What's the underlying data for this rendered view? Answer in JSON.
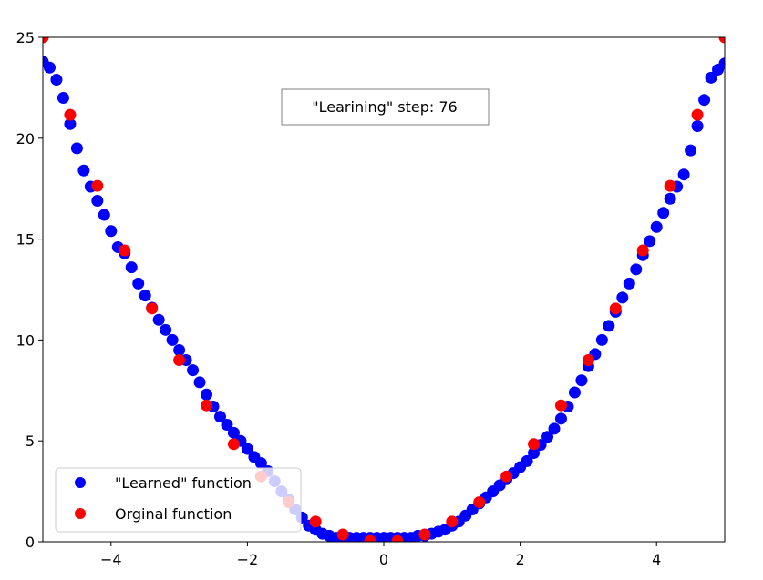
{
  "chart_data": {
    "type": "scatter",
    "xlim": [
      -5,
      5
    ],
    "ylim": [
      0,
      25
    ],
    "x_ticks": [
      -4,
      -2,
      0,
      2,
      4
    ],
    "y_ticks": [
      0,
      5,
      10,
      15,
      20,
      25
    ],
    "x_tick_labels": [
      "−4",
      "−2",
      "0",
      "2",
      "4"
    ],
    "y_tick_labels": [
      "0",
      "5",
      "10",
      "15",
      "20",
      "25"
    ],
    "grid": false,
    "legend_position": "lower-left",
    "annotation": "\"Learining\" step: 76",
    "series": [
      {
        "name": "\"Learned\" function",
        "color": "#0000ff",
        "x": [
          -5.0,
          -4.9,
          -4.8,
          -4.7,
          -4.6,
          -4.5,
          -4.4,
          -4.3,
          -4.2,
          -4.1,
          -4.0,
          -3.9,
          -3.8,
          -3.7,
          -3.6,
          -3.5,
          -3.4,
          -3.3,
          -3.2,
          -3.1,
          -3.0,
          -2.9,
          -2.8,
          -2.7,
          -2.6,
          -2.5,
          -2.4,
          -2.3,
          -2.2,
          -2.1,
          -2.0,
          -1.9,
          -1.8,
          -1.7,
          -1.6,
          -1.5,
          -1.4,
          -1.3,
          -1.2,
          -1.1,
          -1.0,
          -0.9,
          -0.8,
          -0.7,
          -0.6,
          -0.5,
          -0.4,
          -0.3,
          -0.2,
          -0.1,
          0.0,
          0.1,
          0.2,
          0.3,
          0.4,
          0.5,
          0.6,
          0.7,
          0.8,
          0.9,
          1.0,
          1.1,
          1.2,
          1.3,
          1.4,
          1.5,
          1.6,
          1.7,
          1.8,
          1.9,
          2.0,
          2.1,
          2.2,
          2.3,
          2.4,
          2.5,
          2.6,
          2.7,
          2.8,
          2.9,
          3.0,
          3.1,
          3.2,
          3.3,
          3.4,
          3.5,
          3.6,
          3.7,
          3.8,
          3.9,
          4.0,
          4.1,
          4.2,
          4.3,
          4.4,
          4.5,
          4.6,
          4.7,
          4.8,
          4.9,
          5.0
        ],
        "y": [
          23.8,
          23.5,
          22.9,
          22.0,
          20.7,
          19.5,
          18.4,
          17.6,
          16.9,
          16.2,
          15.4,
          14.6,
          14.3,
          13.6,
          12.8,
          12.2,
          11.6,
          11.0,
          10.5,
          10.0,
          9.5,
          9.0,
          8.5,
          7.9,
          7.3,
          6.7,
          6.2,
          5.8,
          5.4,
          5.0,
          4.6,
          4.2,
          3.9,
          3.5,
          3.0,
          2.5,
          2.1,
          1.6,
          1.2,
          0.8,
          0.6,
          0.4,
          0.3,
          0.2,
          0.2,
          0.2,
          0.2,
          0.2,
          0.2,
          0.2,
          0.2,
          0.2,
          0.2,
          0.2,
          0.2,
          0.3,
          0.3,
          0.4,
          0.5,
          0.6,
          0.8,
          1.0,
          1.3,
          1.6,
          1.9,
          2.2,
          2.5,
          2.8,
          3.1,
          3.4,
          3.7,
          4.0,
          4.4,
          4.8,
          5.2,
          5.6,
          6.1,
          6.7,
          7.4,
          8.0,
          8.7,
          9.3,
          10.0,
          10.7,
          11.4,
          12.1,
          12.8,
          13.5,
          14.2,
          14.9,
          15.6,
          16.3,
          17.0,
          17.6,
          18.2,
          19.4,
          20.6,
          21.9,
          23.0,
          23.4,
          23.7
        ]
      },
      {
        "name": "Orginal function",
        "color": "#ff0000",
        "x": [
          -5.0,
          -4.6,
          -4.2,
          -3.8,
          -3.4,
          -3.0,
          -2.6,
          -2.2,
          -1.8,
          -1.4,
          -1.0,
          -0.6,
          -0.2,
          0.2,
          0.6,
          1.0,
          1.4,
          1.8,
          2.2,
          2.6,
          3.0,
          3.4,
          3.8,
          4.2,
          4.6,
          5.0
        ],
        "y": [
          25.0,
          21.16,
          17.64,
          14.44,
          11.56,
          9.0,
          6.76,
          4.84,
          3.24,
          1.96,
          1.0,
          0.36,
          0.04,
          0.04,
          0.36,
          1.0,
          1.96,
          3.24,
          4.84,
          6.76,
          9.0,
          11.56,
          14.44,
          17.64,
          21.16,
          25.0
        ]
      }
    ]
  }
}
